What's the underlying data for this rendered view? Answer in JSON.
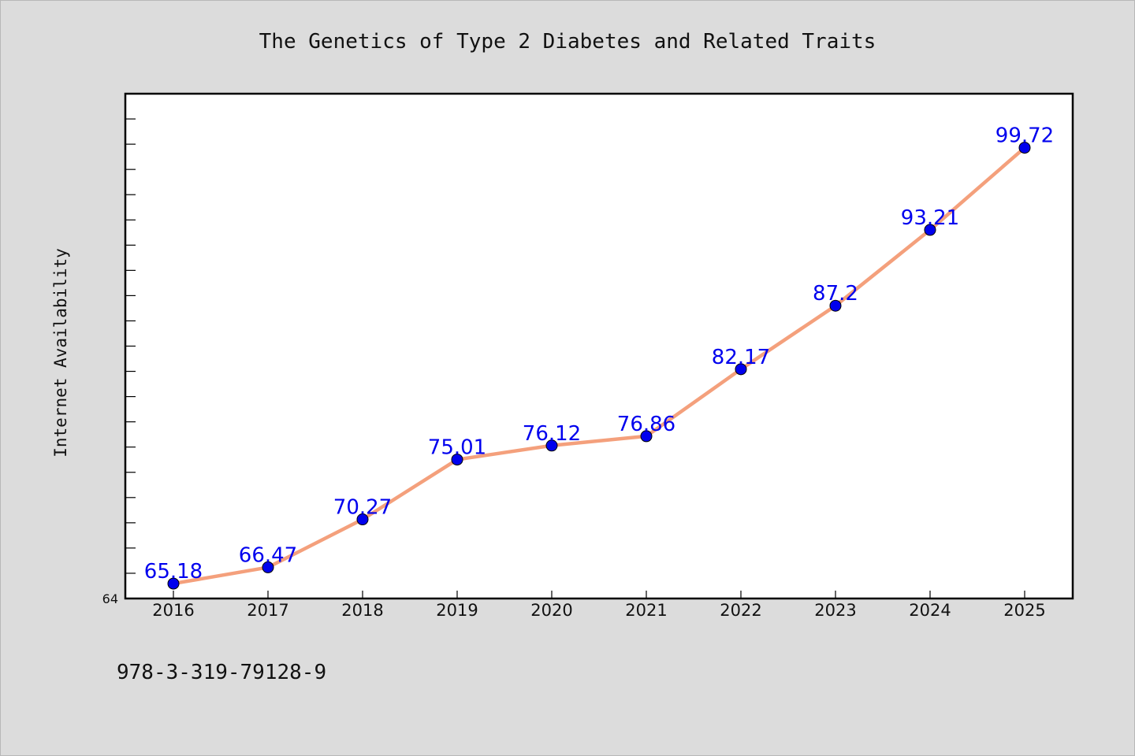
{
  "chart_data": {
    "type": "line",
    "title": "The Genetics of Type 2 Diabetes and Related Traits",
    "xlabel": "",
    "ylabel": "Internet Availability",
    "categories": [
      "2016",
      "2017",
      "2018",
      "2019",
      "2020",
      "2021",
      "2022",
      "2023",
      "2024",
      "2025"
    ],
    "series": [
      {
        "values": [
          65.18,
          66.47,
          70.27,
          75.01,
          76.12,
          76.86,
          82.17,
          87.2,
          93.21,
          99.72
        ],
        "data_labels": [
          "65.18",
          "66.47",
          "70.27",
          "75.01",
          "76.12",
          "76.86",
          "82.17",
          "87.2",
          "93.21",
          "99.72"
        ],
        "line_color": "#f4a07c",
        "marker_color": "#0000ee"
      }
    ],
    "ylim": [
      64,
      104
    ],
    "yticks_labeled": [
      "64"
    ],
    "grid": false,
    "legend": "none"
  },
  "footer": {
    "isbn": "978-3-319-79128-9"
  },
  "colors": {
    "background": "#dcdcdc",
    "plot_area": "#ffffff",
    "line": "#f4a07c",
    "marker": "#0000ee",
    "label": "#0000ee"
  }
}
